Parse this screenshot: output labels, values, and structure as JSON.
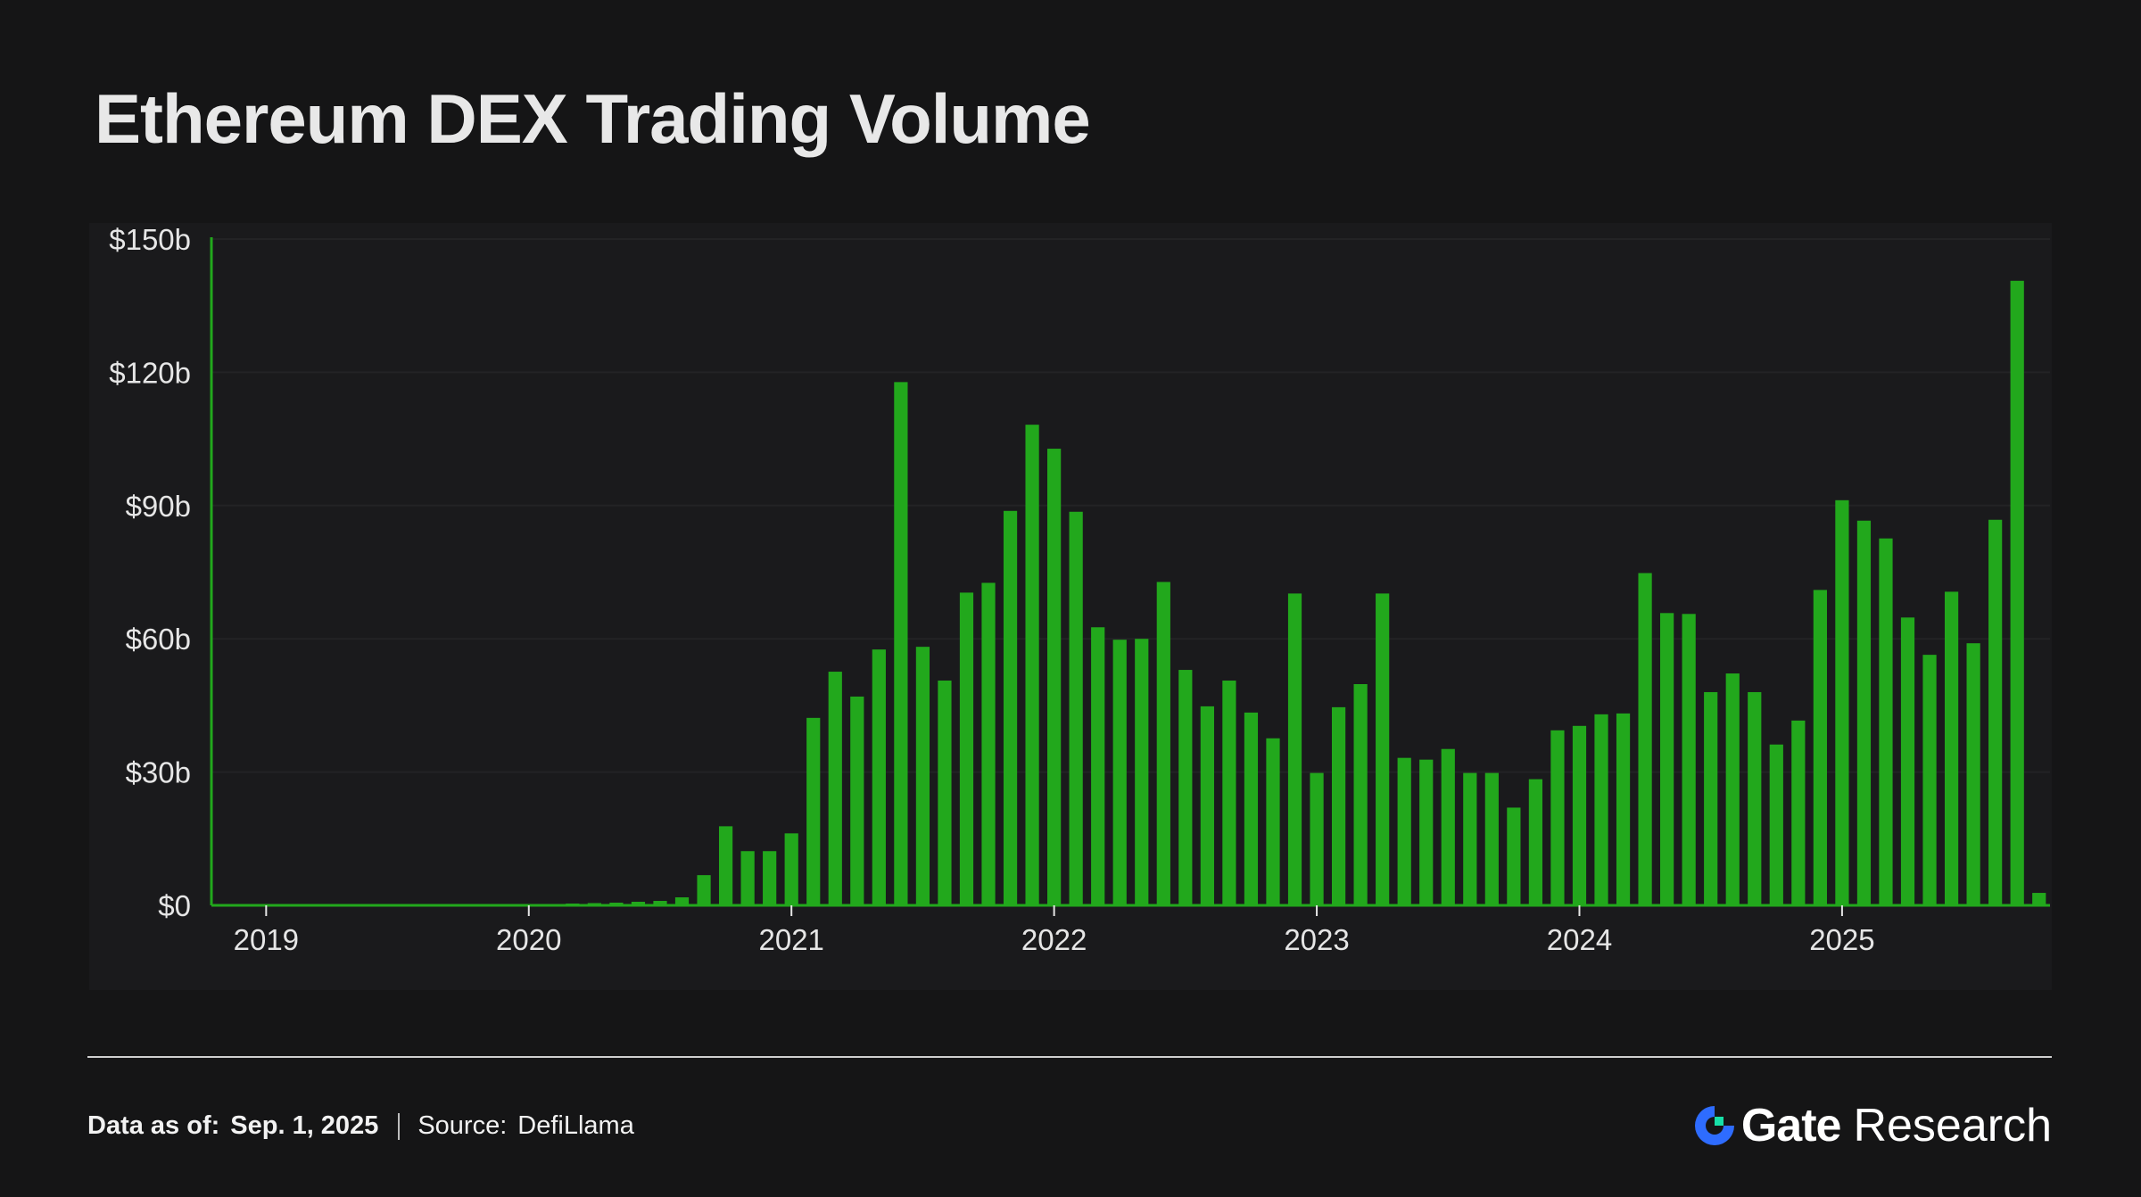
{
  "title": "Ethereum DEX Trading Volume",
  "colors": {
    "bar": "#22a81c",
    "axis": "#22a81c",
    "background": "#151516",
    "panel": "#1a1a1c",
    "brand_accent": "#2e6cff",
    "brand_accent2": "#17e0a8"
  },
  "footer": {
    "date_label": "Data as of:",
    "date_value": "Sep. 1, 2025",
    "source_label": "Source:",
    "source_value": "DefiLlama"
  },
  "brand": {
    "icon": "gate-logo-icon",
    "name": "Gate",
    "suffix": "Research"
  },
  "chart_data": {
    "type": "bar",
    "title": "Ethereum DEX Trading Volume",
    "xlabel": "",
    "ylabel": "",
    "unit": "USD billions",
    "ylim": [
      0,
      150
    ],
    "yticks": [
      "$0",
      "$30b",
      "$60b",
      "$90b",
      "$120b",
      "$150b"
    ],
    "xticks": [
      "2019",
      "2020",
      "2021",
      "2022",
      "2023",
      "2024",
      "2025"
    ],
    "grid": true,
    "legend": "none",
    "start_month": "2018-11",
    "series": [
      {
        "values": [
          0,
          0,
          0,
          0,
          0,
          0,
          0,
          0,
          0,
          0,
          0,
          0,
          0,
          0,
          0.2,
          0.3,
          0.4,
          0.5,
          0.6,
          0.8,
          1.0,
          1.8,
          6.8,
          17.8,
          12.2,
          12.2,
          16.2,
          42.2,
          52.6,
          47.0,
          57.6,
          117.8,
          58.2,
          50.6,
          70.4,
          72.6,
          88.8,
          108.2,
          102.8,
          88.6,
          62.6,
          59.8,
          60.0,
          72.8,
          53.0,
          44.8,
          50.6,
          43.4,
          37.6,
          70.2,
          29.8,
          44.6,
          49.8,
          70.2,
          33.2,
          32.8,
          35.2,
          29.8,
          29.8,
          22.0,
          28.4,
          39.4,
          40.4,
          43.0,
          43.2,
          74.8,
          65.8,
          65.6,
          48.0,
          52.2,
          48.0,
          36.2,
          41.6,
          71.0,
          91.2,
          86.6,
          82.6,
          64.8,
          56.4,
          70.6,
          59.0,
          86.8,
          140.6,
          2.8
        ]
      }
    ]
  }
}
